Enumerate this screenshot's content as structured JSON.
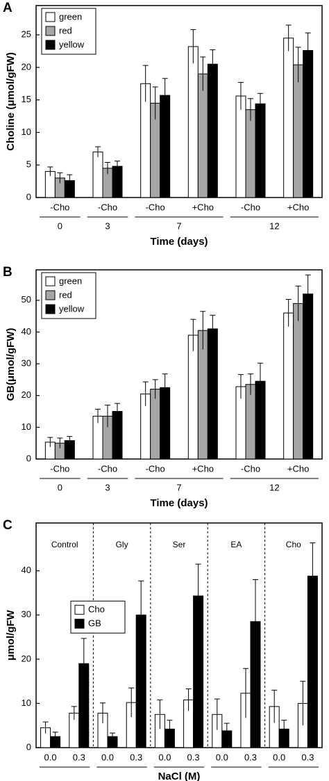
{
  "chart_data": [
    {
      "type": "grouped_bar",
      "label": "A",
      "ylabel": "Choline (μmol/gFW)",
      "xlabel": "Time (days)",
      "groups": [
        {
          "label": "0",
          "categories": [
            "-Cho"
          ]
        },
        {
          "label": "3",
          "categories": [
            "-Cho"
          ]
        },
        {
          "label": "7",
          "categories": [
            "-Cho",
            "+Cho"
          ]
        },
        {
          "label": "12",
          "categories": [
            "-Cho",
            "+Cho"
          ]
        }
      ],
      "group_labels_position": "below",
      "group_separators": false,
      "series": [
        {
          "name": "green",
          "color": "#ffffff",
          "values": [
            4.0,
            7.0,
            17.5,
            23.2,
            15.6,
            24.5
          ],
          "errors": [
            0.7,
            0.8,
            2.8,
            2.6,
            2.1,
            2.0
          ]
        },
        {
          "name": "red",
          "color": "#a6a6a6",
          "values": [
            3.0,
            4.5,
            14.5,
            19.0,
            13.5,
            20.4
          ],
          "errors": [
            0.8,
            0.9,
            2.5,
            2.6,
            1.7,
            2.7
          ]
        },
        {
          "name": "yellow",
          "color": "#000000",
          "values": [
            2.6,
            4.8,
            15.7,
            20.5,
            14.4,
            22.6
          ],
          "errors": [
            0.9,
            0.8,
            2.6,
            2.2,
            1.6,
            2.7
          ]
        }
      ],
      "ylim": [
        0,
        29.5
      ],
      "yticks": [
        0,
        5,
        10,
        15,
        20,
        25
      ],
      "legend": "upper left"
    },
    {
      "type": "grouped_bar",
      "label": "B",
      "ylabel": "GB(μmol/gFW)",
      "xlabel": "Time (days)",
      "groups": [
        {
          "label": "0",
          "categories": [
            "-Cho"
          ]
        },
        {
          "label": "3",
          "categories": [
            "-Cho"
          ]
        },
        {
          "label": "7",
          "categories": [
            "-Cho",
            "+Cho"
          ]
        },
        {
          "label": "12",
          "categories": [
            "-Cho",
            "+Cho"
          ]
        }
      ],
      "group_labels_position": "below",
      "group_separators": false,
      "series": [
        {
          "name": "green",
          "color": "#ffffff",
          "values": [
            5.3,
            13.5,
            20.5,
            39.0,
            22.8,
            46.0
          ],
          "errors": [
            1.5,
            2.2,
            3.8,
            5.0,
            3.8,
            4.3
          ]
        },
        {
          "name": "red",
          "color": "#a6a6a6",
          "values": [
            5.0,
            13.5,
            22.0,
            40.5,
            23.5,
            49.0
          ],
          "errors": [
            1.6,
            3.5,
            3.0,
            6.0,
            3.3,
            5.5
          ]
        },
        {
          "name": "yellow",
          "color": "#000000",
          "values": [
            5.8,
            15.0,
            22.5,
            41.0,
            24.5,
            52.0
          ],
          "errors": [
            1.3,
            2.5,
            4.3,
            4.3,
            5.7,
            6.0
          ]
        }
      ],
      "ylim": [
        0,
        59.6
      ],
      "yticks": [
        0,
        10,
        20,
        30,
        40,
        50
      ],
      "legend": "upper left"
    },
    {
      "type": "grouped_bar",
      "label": "C",
      "ylabel": "μmol/gFW",
      "xlabel": "NaCl (M)",
      "groups": [
        {
          "label": "Control",
          "categories": [
            "0.0",
            "0.3"
          ]
        },
        {
          "label": "Gly",
          "categories": [
            "0.0",
            "0.3"
          ]
        },
        {
          "label": "Ser",
          "categories": [
            "0.0",
            "0.3"
          ]
        },
        {
          "label": "EA",
          "categories": [
            "0.0",
            "0.3"
          ]
        },
        {
          "label": "Cho",
          "categories": [
            "0.0",
            "0.3"
          ]
        }
      ],
      "group_labels_position": "inside top",
      "group_separators": true,
      "series": [
        {
          "name": "Cho",
          "color": "#ffffff",
          "values": [
            4.5,
            7.8,
            7.8,
            10.2,
            7.5,
            10.8,
            7.5,
            12.3,
            9.3,
            10.0
          ],
          "errors": [
            1.3,
            1.5,
            2.3,
            3.3,
            3.3,
            2.5,
            3.5,
            5.6,
            3.7,
            5.0
          ]
        },
        {
          "name": "GB",
          "color": "#000000",
          "values": [
            2.5,
            19.0,
            2.5,
            30.0,
            4.2,
            34.3,
            3.8,
            28.5,
            4.2,
            38.8
          ],
          "errors": [
            1.0,
            5.7,
            0.8,
            7.7,
            2.0,
            7.2,
            1.7,
            9.5,
            2.0,
            7.5
          ]
        }
      ],
      "ylim": [
        0,
        50.8
      ],
      "yticks": [
        0,
        10,
        20,
        30,
        40
      ],
      "legend": "center left"
    }
  ]
}
